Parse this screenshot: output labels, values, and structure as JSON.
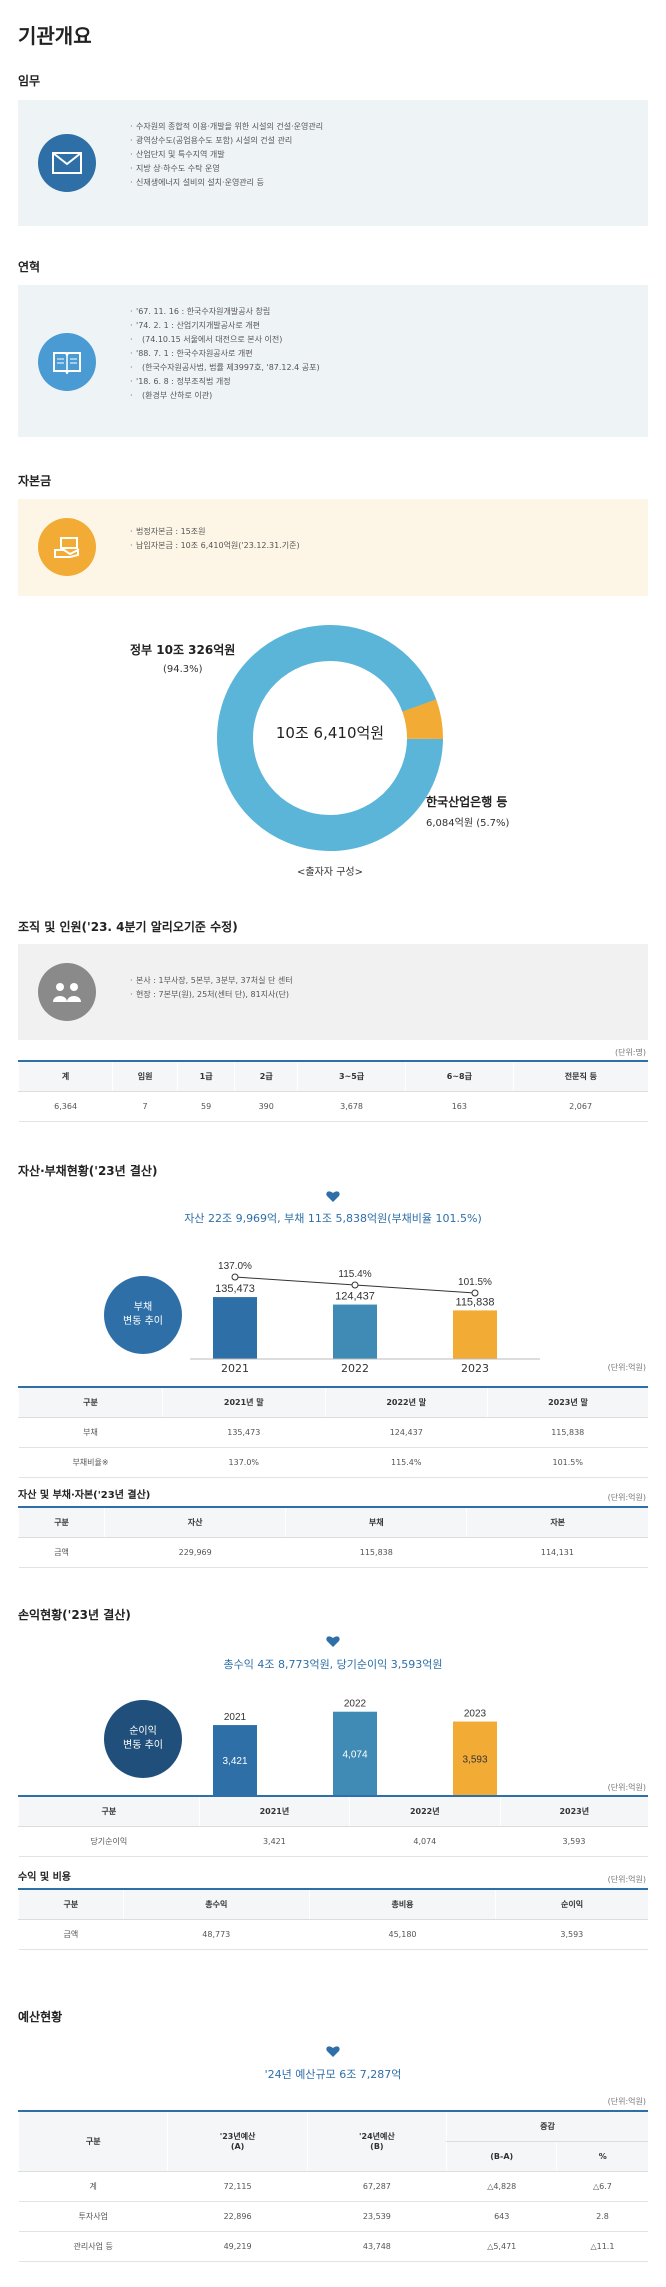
{
  "title": "기관개요",
  "duty": {
    "heading": "임무",
    "items": [
      "수자원의 종합적 이용·개발을 위한 시설의 건설·운영관리",
      "광역상수도(공업용수도 포함) 시설의 건설 관리",
      "산업단지 및 특수지역 개발",
      "지방 상·하수도 수탁 운영",
      "신재생에너지 설비의 설치·운영관리 등"
    ]
  },
  "history": {
    "heading": "연혁",
    "items": [
      "'67. 11. 16 : 한국수자원개발공사 창립",
      "'74. 2. 1 : 산업기지개발공사로 개편",
      "(74.10.15 서울에서 대전으로 본사 이전)",
      "'88. 7. 1 : 한국수자원공사로 개편",
      "(한국수자원공사법, 법률 제3997호, '87.12.4 공포)",
      "'18. 6. 8 : 정부조직법 개정",
      "(환경부 산하로 이관)"
    ]
  },
  "capital": {
    "heading": "자본금",
    "items": [
      "법정자본금 : 15조원",
      "납입자본금 : 10조 6,410억원('23.12.31.기준)"
    ]
  },
  "donut": {
    "center": "10조 6,410억원",
    "gov_label": "정부 10조 326억원",
    "gov_pct": "(94.3%)",
    "bank_label": "한국산업은행 등",
    "bank_val": "6,084억원 (5.7%)",
    "caption": "<출자자 구성>",
    "colors": {
      "gov": "#5bb5d9",
      "bank": "#f2ac35"
    }
  },
  "org": {
    "heading": "조직 및 인원('23. 4분기 알리오기준 수정)",
    "items": [
      "본사 : 1부사장, 5본부, 3분부, 37처실 단 센터",
      "현장 : 7본부(원), 25처(센터 단), 81지사(단)"
    ],
    "unit": "(단위:명)",
    "headers": [
      "계",
      "임원",
      "1급",
      "2급",
      "3~5급",
      "6~8급",
      "전문직 등"
    ],
    "row": [
      "6,364",
      "7",
      "59",
      "390",
      "3,678",
      "163",
      "2,067"
    ]
  },
  "debt": {
    "heading": "자산·부채현황('23년 결산)",
    "headline": "자산 22조 9,969억, 부채 11조 5,838억원(부채비율 101.5%)",
    "badge": "부채\n변동 추이",
    "years": [
      "2021",
      "2022",
      "2023"
    ],
    "values": [
      135473,
      124437,
      115838
    ],
    "value_labels": [
      "135,473",
      "124,437",
      "115,838"
    ],
    "ratios": [
      "137.0%",
      "115.4%",
      "101.5%"
    ],
    "unit": "(단위:억원)",
    "table_headers": [
      "구분",
      "2021년 말",
      "2022년 말",
      "2023년 말"
    ],
    "rows": [
      [
        "부채",
        "135,473",
        "124,437",
        "115,838"
      ],
      [
        "부채비율※",
        "137.0%",
        "115.4%",
        "101.5%"
      ]
    ]
  },
  "assets": {
    "heading": "자산 및 부채·자본('23년 결산)",
    "unit": "(단위:억원)",
    "headers": [
      "구분",
      "자산",
      "부채",
      "자본"
    ],
    "row": [
      "금액",
      "229,969",
      "115,838",
      "114,131"
    ]
  },
  "profit": {
    "heading": "손익현황('23년 결산)",
    "headline": "총수익 4조 8,773억원, 당기순이익 3,593억원",
    "badge": "순이익\n변동 추이",
    "years": [
      "2021",
      "2022",
      "2023"
    ],
    "values": [
      3421,
      4074,
      3593
    ],
    "value_labels": [
      "3,421",
      "4,074",
      "3,593"
    ],
    "unit": "(단위:억원)",
    "table_headers": [
      "구분",
      "2021년",
      "2022년",
      "2023년"
    ],
    "row": [
      "당기순이익",
      "3,421",
      "4,074",
      "3,593"
    ]
  },
  "income": {
    "heading": "수익 및 비용",
    "unit": "(단위:억원)",
    "headers": [
      "구분",
      "총수익",
      "총비용",
      "순이익"
    ],
    "row": [
      "금액",
      "48,773",
      "45,180",
      "3,593"
    ]
  },
  "budget": {
    "heading": "예산현황",
    "headline": "'24년 예산규모 6조 7,287억",
    "unit": "(단위:억원)",
    "h_gubun": "구분",
    "h_23": "'23년예산",
    "h_23b": "(A)",
    "h_24": "'24년예산",
    "h_24b": "(B)",
    "h_diff": "증감",
    "h_ba": "(B-A)",
    "h_pct": "%",
    "rows": [
      [
        "계",
        "72,115",
        "67,287",
        "△4,828",
        "△6.7"
      ],
      [
        "투자사업",
        "22,896",
        "23,539",
        "643",
        "2.8"
      ],
      [
        "관리사업 등",
        "49,219",
        "43,748",
        "△5,471",
        "△11.1"
      ]
    ]
  },
  "chart_data": [
    {
      "type": "bar",
      "title": "자산 22조 9,969억, 부채 11조 5,838억원(부채비율 101.5%)",
      "categories": [
        "2021",
        "2022",
        "2023"
      ],
      "series": [
        {
          "name": "부채",
          "values": [
            135473,
            124437,
            115838
          ]
        },
        {
          "name": "부채비율",
          "values": [
            137.0,
            115.4,
            101.5
          ]
        }
      ]
    },
    {
      "type": "bar",
      "title": "총수익 4조 8,773억원, 당기순이익 3,593억원",
      "categories": [
        "2021",
        "2022",
        "2023"
      ],
      "values": [
        3421,
        4074,
        3593
      ]
    },
    {
      "type": "pie",
      "title": "<출자자 구성>",
      "categories": [
        "정부",
        "한국산업은행 등"
      ],
      "values": [
        94.3,
        5.7
      ]
    }
  ]
}
